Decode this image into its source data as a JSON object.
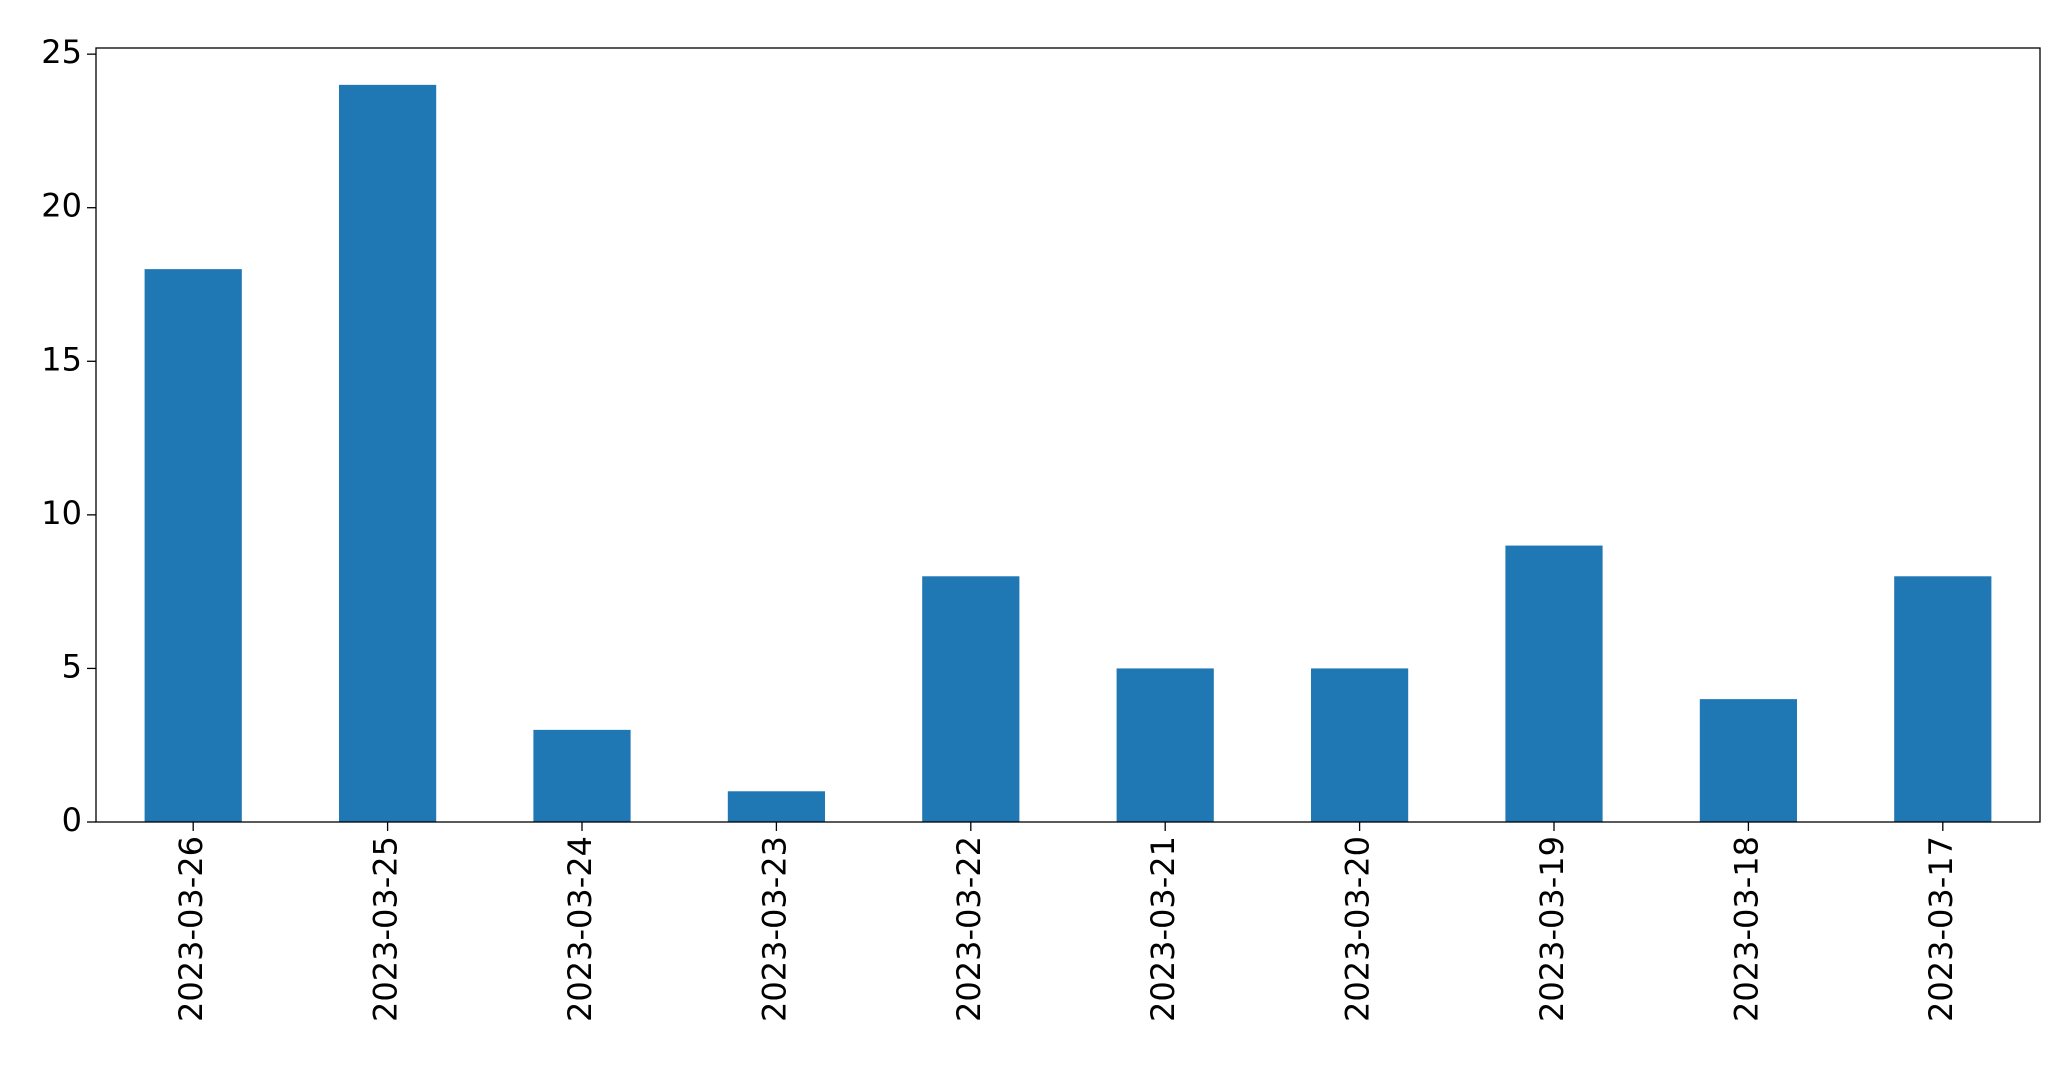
{
  "chart_data": {
    "type": "bar",
    "categories": [
      "2023-03-26",
      "2023-03-25",
      "2023-03-24",
      "2023-03-23",
      "2023-03-22",
      "2023-03-21",
      "2023-03-20",
      "2023-03-19",
      "2023-03-18",
      "2023-03-17"
    ],
    "values": [
      18,
      24,
      3,
      1,
      8,
      5,
      5,
      9,
      4,
      8
    ],
    "color": "#1f77b4",
    "ylim": [
      0,
      25.2
    ],
    "yticks": [
      0,
      5,
      10,
      15,
      20,
      25
    ],
    "grid": false
  }
}
